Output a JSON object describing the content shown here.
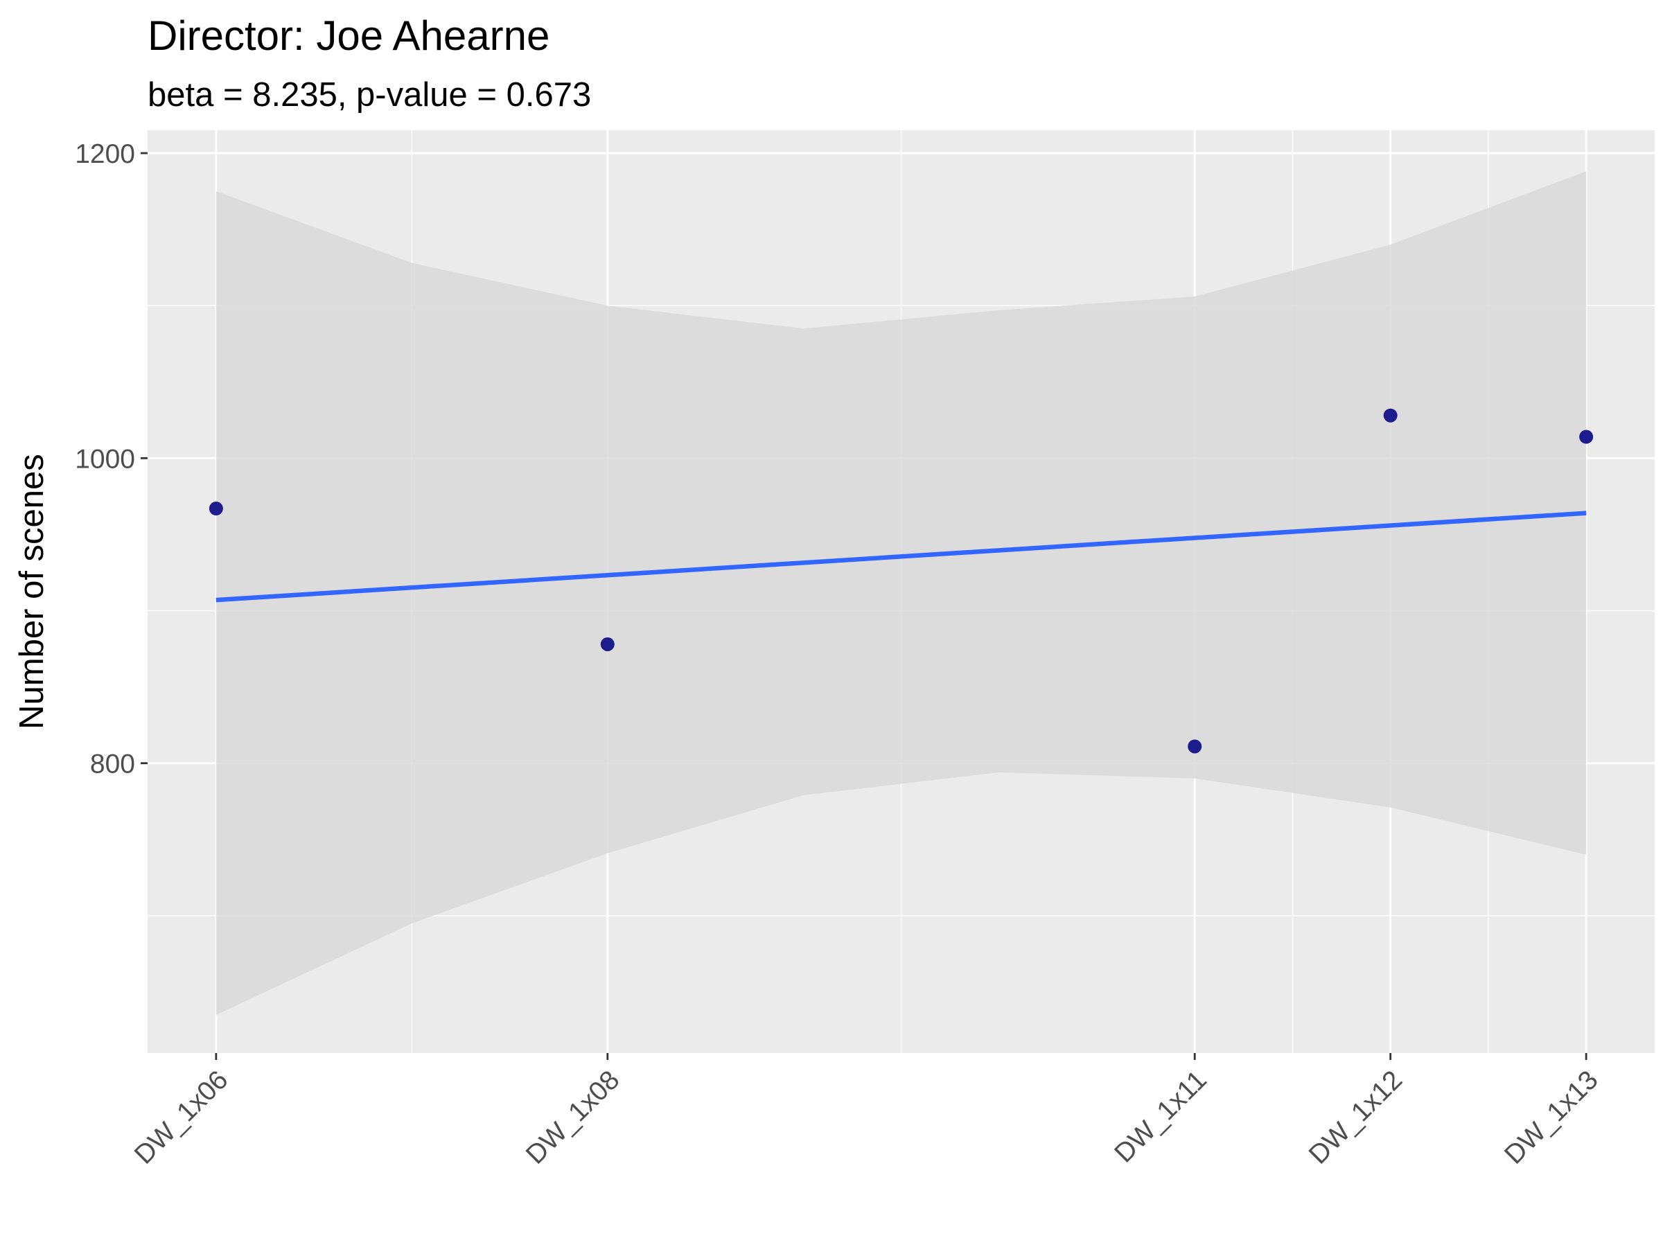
{
  "chart_data": {
    "type": "scatter",
    "title": "Director: Joe Ahearne",
    "subtitle": "beta = 8.235, p-value = 0.673",
    "xlabel": "",
    "ylabel": "Number of scenes",
    "x_scale": "categorical-numeric",
    "x_tick_labels": [
      "DW_1x06",
      "DW_1x08",
      "DW_1x11",
      "DW_1x12",
      "DW_1x13"
    ],
    "x_index": [
      6,
      8,
      11,
      12,
      13
    ],
    "xlim": [
      5.65,
      13.35
    ],
    "ylim": [
      610,
      1215
    ],
    "y_ticks": [
      800,
      1000,
      1200
    ],
    "grid": true,
    "series": [
      {
        "kind": "points",
        "x": [
          "DW_1x06",
          "DW_1x08",
          "DW_1x11",
          "DW_1x12",
          "DW_1x13"
        ],
        "values": [
          967,
          878,
          811,
          1028,
          1014
        ]
      },
      {
        "kind": "trend-line",
        "x": [
          "DW_1x06",
          "DW_1x13"
        ],
        "values": [
          907,
          964
        ]
      }
    ],
    "confidence_band": {
      "x": [
        6,
        7,
        8,
        9,
        10,
        11,
        12,
        13
      ],
      "lower": [
        635,
        695,
        741,
        779,
        794,
        790,
        771,
        740
      ],
      "upper": [
        1175,
        1128,
        1100,
        1085,
        1097,
        1106,
        1140,
        1188
      ]
    },
    "colors": {
      "panel_background": "#ebebeb",
      "grid_line": "#ffffff",
      "point": "#1c1c8c",
      "trend_line": "#3366ff",
      "confidence_band": "#d9d9d9",
      "tick_label": "#4d4d4d",
      "tick_mark": "#333333",
      "text": "#000000"
    }
  }
}
